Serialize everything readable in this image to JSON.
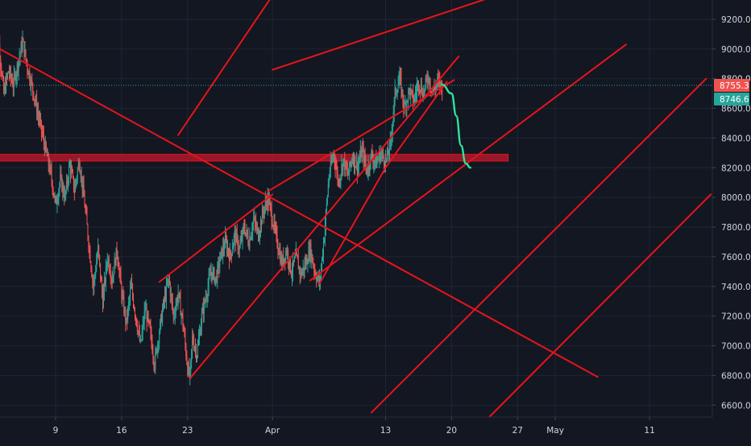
{
  "colors": {
    "background": "#131722",
    "grid": "#1f2533",
    "axis_text": "#d1d4dc",
    "candle_up": "#26a69a",
    "candle_down": "#ef5350",
    "trendline": "#e8141c",
    "zone": "#b2182b",
    "projection": "#2ee59d",
    "price_line": "#26a69a",
    "label_red": "#ef5350",
    "label_green": "#26a69a"
  },
  "chart_data": {
    "type": "candlestick",
    "title": "",
    "xlabel": "",
    "ylabel": "",
    "x_range": [
      "2020-03-02T12:00",
      "2020-05-17T12:00"
    ],
    "ylim": [
      6520,
      9330
    ],
    "y_ticks": [
      6600,
      6800,
      7000,
      7200,
      7400,
      7600,
      7800,
      8000,
      8200,
      8400,
      8600,
      8800,
      9000,
      9200
    ],
    "y_tick_labels": [
      "6600.0",
      "6800.0",
      "7000.0",
      "7200.0",
      "7400.0",
      "7600.0",
      "7800.0",
      "8000.0",
      "8200.0",
      "8400.0",
      "8600.0",
      "8800.0",
      "9000.0",
      "9200.0"
    ],
    "x_ticks": [
      {
        "date": "2020-03-09",
        "label": "9"
      },
      {
        "date": "2020-03-16",
        "label": "16"
      },
      {
        "date": "2020-03-23",
        "label": "23"
      },
      {
        "date": "2020-04-01",
        "label": "Apr"
      },
      {
        "date": "2020-04-13",
        "label": "13"
      },
      {
        "date": "2020-04-20",
        "label": "20"
      },
      {
        "date": "2020-04-27",
        "label": "27"
      },
      {
        "date": "2020-05-01",
        "label": "May"
      },
      {
        "date": "2020-05-11",
        "label": "11"
      }
    ],
    "price_path": [
      [
        "2020-03-02T12:00",
        8800
      ],
      [
        "2020-03-03T00:00",
        9020
      ],
      [
        "2020-03-03T12:00",
        8700
      ],
      [
        "2020-03-04T00:00",
        8850
      ],
      [
        "2020-03-04T12:00",
        8760
      ],
      [
        "2020-03-05T00:00",
        8900
      ],
      [
        "2020-03-05T12:00",
        9050
      ],
      [
        "2020-03-06T00:00",
        8880
      ],
      [
        "2020-03-06T12:00",
        8750
      ],
      [
        "2020-03-07T00:00",
        8600
      ],
      [
        "2020-03-07T12:00",
        8450
      ],
      [
        "2020-03-08T00:00",
        8300
      ],
      [
        "2020-03-08T12:00",
        8150
      ],
      [
        "2020-03-09T00:00",
        7950
      ],
      [
        "2020-03-09T12:00",
        8120
      ],
      [
        "2020-03-10T00:00",
        8000
      ],
      [
        "2020-03-10T12:00",
        8220
      ],
      [
        "2020-03-11T00:00",
        8050
      ],
      [
        "2020-03-11T12:00",
        8250
      ],
      [
        "2020-03-12T00:00",
        8000
      ],
      [
        "2020-03-12T12:00",
        7700
      ],
      [
        "2020-03-13T00:00",
        7400
      ],
      [
        "2020-03-13T12:00",
        7650
      ],
      [
        "2020-03-14T00:00",
        7300
      ],
      [
        "2020-03-14T12:00",
        7600
      ],
      [
        "2020-03-15T00:00",
        7450
      ],
      [
        "2020-03-15T12:00",
        7650
      ],
      [
        "2020-03-16T00:00",
        7350
      ],
      [
        "2020-03-16T12:00",
        7150
      ],
      [
        "2020-03-17T00:00",
        7400
      ],
      [
        "2020-03-17T12:00",
        7200
      ],
      [
        "2020-03-18T00:00",
        7000
      ],
      [
        "2020-03-18T12:00",
        7250
      ],
      [
        "2020-03-19T00:00",
        7100
      ],
      [
        "2020-03-19T12:00",
        6880
      ],
      [
        "2020-03-20T00:00",
        7100
      ],
      [
        "2020-03-20T12:00",
        7300
      ],
      [
        "2020-03-21T00:00",
        7450
      ],
      [
        "2020-03-21T12:00",
        7200
      ],
      [
        "2020-03-22T00:00",
        7350
      ],
      [
        "2020-03-22T12:00",
        7150
      ],
      [
        "2020-03-23T00:00",
        6850
      ],
      [
        "2020-03-23T06:00",
        6780
      ],
      [
        "2020-03-23T12:00",
        7050
      ],
      [
        "2020-03-24T00:00",
        6950
      ],
      [
        "2020-03-24T12:00",
        7200
      ],
      [
        "2020-03-25T00:00",
        7350
      ],
      [
        "2020-03-25T12:00",
        7500
      ],
      [
        "2020-03-26T00:00",
        7450
      ],
      [
        "2020-03-26T12:00",
        7600
      ],
      [
        "2020-03-27T00:00",
        7700
      ],
      [
        "2020-03-27T12:00",
        7600
      ],
      [
        "2020-03-28T00:00",
        7750
      ],
      [
        "2020-03-28T12:00",
        7650
      ],
      [
        "2020-03-29T00:00",
        7800
      ],
      [
        "2020-03-29T12:00",
        7700
      ],
      [
        "2020-03-30T00:00",
        7850
      ],
      [
        "2020-03-30T12:00",
        7750
      ],
      [
        "2020-03-31T00:00",
        7900
      ],
      [
        "2020-03-31T12:00",
        8000
      ],
      [
        "2020-04-01T00:00",
        7850
      ],
      [
        "2020-04-01T12:00",
        7700
      ],
      [
        "2020-04-02T00:00",
        7550
      ],
      [
        "2020-04-02T12:00",
        7650
      ],
      [
        "2020-04-03T00:00",
        7500
      ],
      [
        "2020-04-03T12:00",
        7600
      ],
      [
        "2020-04-04T00:00",
        7480
      ],
      [
        "2020-04-04T12:00",
        7550
      ],
      [
        "2020-04-05T00:00",
        7650
      ],
      [
        "2020-04-05T12:00",
        7500
      ],
      [
        "2020-04-06T00:00",
        7420
      ],
      [
        "2020-04-06T12:00",
        7750
      ],
      [
        "2020-04-07T00:00",
        8150
      ],
      [
        "2020-04-07T12:00",
        8300
      ],
      [
        "2020-04-08T00:00",
        8100
      ],
      [
        "2020-04-08T12:00",
        8250
      ],
      [
        "2020-04-09T00:00",
        8150
      ],
      [
        "2020-04-09T12:00",
        8280
      ],
      [
        "2020-04-10T00:00",
        8200
      ],
      [
        "2020-04-10T12:00",
        8320
      ],
      [
        "2020-04-11T00:00",
        8180
      ],
      [
        "2020-04-11T12:00",
        8280
      ],
      [
        "2020-04-12T00:00",
        8230
      ],
      [
        "2020-04-12T12:00",
        8300
      ],
      [
        "2020-04-13T00:00",
        8240
      ],
      [
        "2020-04-13T12:00",
        8350
      ],
      [
        "2020-04-14T00:00",
        8700
      ],
      [
        "2020-04-14T12:00",
        8800
      ],
      [
        "2020-04-15T00:00",
        8600
      ],
      [
        "2020-04-15T12:00",
        8720
      ],
      [
        "2020-04-16T00:00",
        8650
      ],
      [
        "2020-04-16T12:00",
        8780
      ],
      [
        "2020-04-17T00:00",
        8700
      ],
      [
        "2020-04-17T12:00",
        8820
      ],
      [
        "2020-04-18T00:00",
        8700
      ],
      [
        "2020-04-18T12:00",
        8780
      ],
      [
        "2020-04-19T00:00",
        8746.6
      ]
    ],
    "last_price": 8746.6,
    "last_price_label": "8746.6",
    "marked_price": 8755.3,
    "marked_price_label": "8755.3",
    "ghost_price_label": "8800.0",
    "horizontal_zone": {
      "from": "2020-03-02T12:00",
      "to": "2020-04-26T00:00",
      "y_low": 8245,
      "y_high": 8290
    },
    "trendlines": [
      {
        "name": "",
        "p1": [
          "2020-03-02T12:00",
          9020
        ],
        "p2": [
          "2020-05-05T12:00",
          6790
        ]
      },
      {
        "name": "",
        "p1": [
          "2020-03-23T06:00",
          6780
        ],
        "p2": [
          "2020-04-20T18:00",
          8950
        ]
      },
      {
        "name": "",
        "p1": [
          "2020-03-20T00:00",
          7430
        ],
        "p2": [
          "2020-04-01T00:00",
          8020
        ]
      },
      {
        "name": "",
        "p1": [
          "2020-03-31T12:00",
          8040
        ],
        "p2": [
          "2020-04-20T06:00",
          8790
        ]
      },
      {
        "name": "",
        "p1": [
          "2020-03-22T00:00",
          8420
        ],
        "p2": [
          "2020-04-01T00:00",
          9360
        ]
      },
      {
        "name": "",
        "p1": [
          "2020-04-01T00:00",
          8860
        ],
        "p2": [
          "2020-04-29T12:00",
          9460
        ]
      },
      {
        "name": "",
        "p1": [
          "2020-04-06T00:00",
          7420
        ],
        "p2": [
          "2020-04-13T00:00",
          8200
        ]
      },
      {
        "name": "",
        "p1": [
          "2020-04-13T00:00",
          8200
        ],
        "p2": [
          "2020-04-19T12:00",
          8780
        ]
      },
      {
        "name": "",
        "p1": [
          "2020-04-11T12:00",
          6550
        ],
        "p2": [
          "2020-05-17T00:00",
          8800
        ]
      },
      {
        "name": "",
        "p1": [
          "2020-04-24T00:00",
          6520
        ],
        "p2": [
          "2020-05-17T12:00",
          8020
        ]
      },
      {
        "name": "",
        "p1": [
          "2020-04-05T00:00",
          7440
        ],
        "p2": [
          "2020-05-08T12:00",
          9030
        ]
      }
    ],
    "projection_path": [
      [
        "2020-04-19T00:00",
        8760
      ],
      [
        "2020-04-20T00:00",
        8700
      ],
      [
        "2020-04-20T12:00",
        8550
      ],
      [
        "2020-04-21T00:00",
        8350
      ],
      [
        "2020-04-21T12:00",
        8230
      ],
      [
        "2020-04-22T00:00",
        8200
      ]
    ]
  }
}
